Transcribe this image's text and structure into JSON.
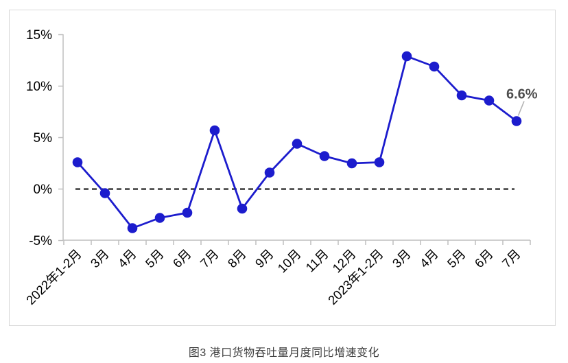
{
  "chart_data": {
    "type": "line",
    "title": "图3 港口货物吞吐量月度同比增速变化",
    "unit": "%",
    "categories": [
      "2022年1-2月",
      "3月",
      "4月",
      "5月",
      "6月",
      "7月",
      "8月",
      "9月",
      "10月",
      "11月",
      "12月",
      "2023年1-2月",
      "3月",
      "4月",
      "5月",
      "6月",
      "7月"
    ],
    "values": [
      2.6,
      -0.4,
      -3.8,
      -2.8,
      -2.3,
      5.7,
      -1.9,
      1.6,
      4.4,
      3.2,
      2.5,
      2.6,
      12.9,
      11.9,
      9.1,
      8.6,
      6.6
    ],
    "ylim": [
      -5,
      15
    ],
    "yticks": [
      15,
      10,
      5,
      0,
      -5
    ],
    "ytick_labels": [
      "15%",
      "10%",
      "5%",
      "0%",
      "-5%"
    ],
    "xlabel": "",
    "ylabel": "",
    "grid": false,
    "legend": false,
    "x_label_rotation_deg": -45,
    "zero_line": {
      "value": 0,
      "style": "dashed",
      "color": "#000000"
    },
    "line_color": "#1c1ccd",
    "marker": "circle",
    "annotation": {
      "text": "6.6%",
      "target_index": 16,
      "color": "#4d4d4d",
      "leader_color": "#b3b3b3"
    },
    "axis_color": "#bfbfbf",
    "frame_color": "#d9d9d9",
    "tick_label_color": "#000000"
  },
  "caption": {
    "text": "图3 港口货物吞吐量月度同比增速变化",
    "color": "#3f3f3f"
  }
}
